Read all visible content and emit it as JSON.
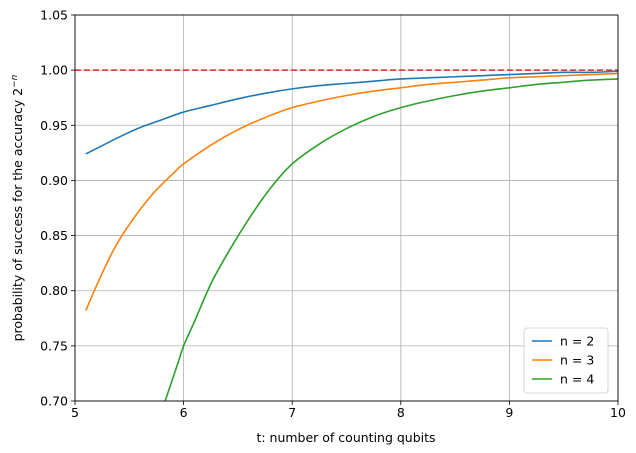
{
  "chart_data": {
    "type": "line",
    "xlabel": "t: number of counting qubits",
    "ylabel": "probability of success for the accuracy 2",
    "ylabel_superscript": "−n",
    "xlim": [
      5,
      10
    ],
    "ylim": [
      0.7,
      1.05
    ],
    "x_ticks": [
      "5",
      "6",
      "7",
      "8",
      "9",
      "10"
    ],
    "y_ticks": [
      "0.70",
      "0.75",
      "0.80",
      "0.85",
      "0.90",
      "0.95",
      "1.00",
      "1.05"
    ],
    "grid": true,
    "legend_position": "bottom-right",
    "reference_line": {
      "y": 1.0,
      "style": "dashed",
      "color": "#d62728"
    },
    "series": [
      {
        "name": "n = 2",
        "color": "#1f77b4",
        "x": [
          5.1,
          5.2,
          5.4,
          5.6,
          5.8,
          6.0,
          6.25,
          6.5,
          6.75,
          7.0,
          7.25,
          7.5,
          7.75,
          8.0,
          8.25,
          8.5,
          8.75,
          9.0,
          9.25,
          9.5,
          9.75,
          10.0
        ],
        "y": [
          0.924,
          0.929,
          0.939,
          0.948,
          0.955,
          0.962,
          0.968,
          0.974,
          0.979,
          0.983,
          0.986,
          0.988,
          0.99,
          0.992,
          0.993,
          0.994,
          0.995,
          0.996,
          0.997,
          0.998,
          0.998,
          0.999
        ]
      },
      {
        "name": "n = 3",
        "color": "#ff7f0e",
        "x": [
          5.1,
          5.2,
          5.35,
          5.5,
          5.7,
          5.9,
          6.0,
          6.25,
          6.5,
          6.75,
          7.0,
          7.25,
          7.5,
          7.75,
          8.0,
          8.25,
          8.5,
          8.75,
          9.0,
          9.25,
          9.5,
          9.75,
          10.0
        ],
        "y": [
          0.782,
          0.805,
          0.836,
          0.86,
          0.886,
          0.906,
          0.915,
          0.932,
          0.946,
          0.957,
          0.966,
          0.972,
          0.977,
          0.981,
          0.984,
          0.987,
          0.989,
          0.991,
          0.993,
          0.994,
          0.995,
          0.996,
          0.997
        ]
      },
      {
        "name": "n = 4",
        "color": "#2ca02c",
        "x": [
          5.83,
          5.95,
          6.0,
          6.1,
          6.25,
          6.4,
          6.6,
          6.8,
          7.0,
          7.25,
          7.5,
          7.75,
          8.0,
          8.25,
          8.5,
          8.75,
          9.0,
          9.25,
          9.5,
          9.75,
          10.0
        ],
        "y": [
          0.7,
          0.735,
          0.75,
          0.772,
          0.806,
          0.833,
          0.865,
          0.893,
          0.915,
          0.933,
          0.947,
          0.958,
          0.966,
          0.972,
          0.977,
          0.981,
          0.984,
          0.987,
          0.989,
          0.991,
          0.992
        ]
      }
    ]
  }
}
